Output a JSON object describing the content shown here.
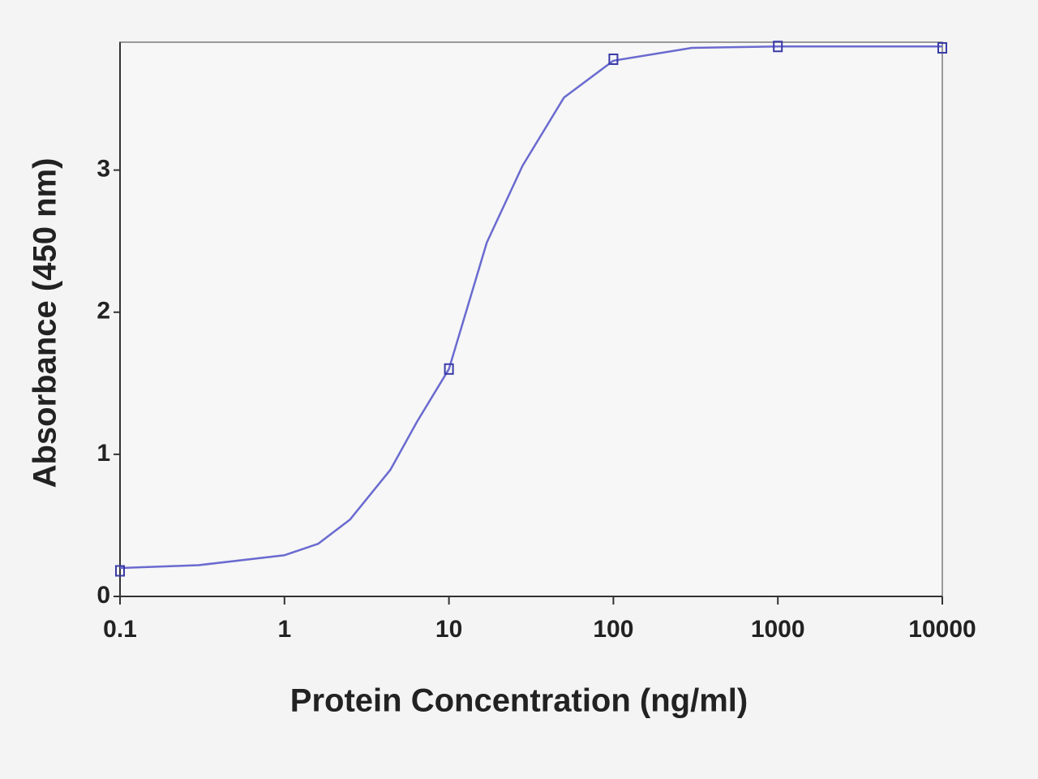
{
  "chart_data": {
    "type": "scatter",
    "xlabel": "Protein Concentration (ng/ml)",
    "ylabel": "Absorbance (450 nm)",
    "xscale": "log",
    "xlim": [
      0.1,
      10000
    ],
    "xticks": [
      0.1,
      1,
      10,
      100,
      1000,
      10000
    ],
    "ylim": [
      0,
      3.9
    ],
    "yticks": [
      0,
      1,
      2,
      3
    ],
    "series": [
      {
        "color": "#3a3aa8",
        "x": [
          0.1,
          10,
          100,
          1000,
          10000
        ],
        "values": [
          0.18,
          1.6,
          3.78,
          3.87,
          3.86
        ]
      }
    ],
    "fit": {
      "color": "#6a6ad0",
      "x": [
        0.1,
        0.3,
        1,
        1.6,
        2.5,
        4.4,
        6.4,
        10,
        17,
        28,
        50,
        100,
        300,
        1000,
        10000
      ],
      "values": [
        0.2,
        0.22,
        0.29,
        0.37,
        0.54,
        0.89,
        1.23,
        1.6,
        2.49,
        3.03,
        3.51,
        3.77,
        3.86,
        3.87,
        3.87
      ]
    }
  }
}
